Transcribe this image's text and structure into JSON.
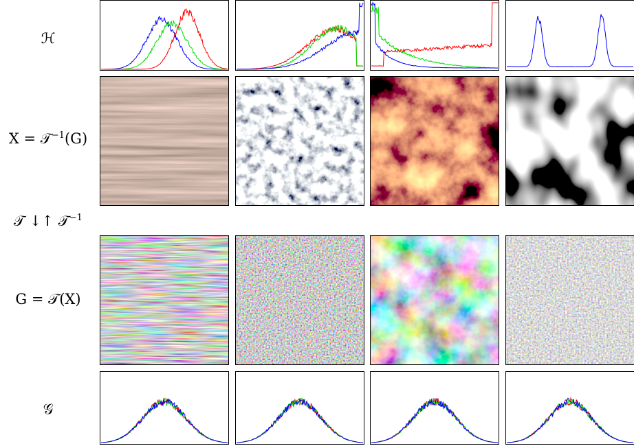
{
  "row_labels": {
    "histogram": "ℋ",
    "image": {
      "pre": "X = 𝒯",
      "sup": "−1",
      "post": "(G)"
    },
    "transform": {
      "pre": "𝒯 ↓↑ 𝒯",
      "sup": "−1"
    },
    "gaussianized": "G = 𝒯(X)",
    "gaussian_histogram": "𝒢"
  }
}
